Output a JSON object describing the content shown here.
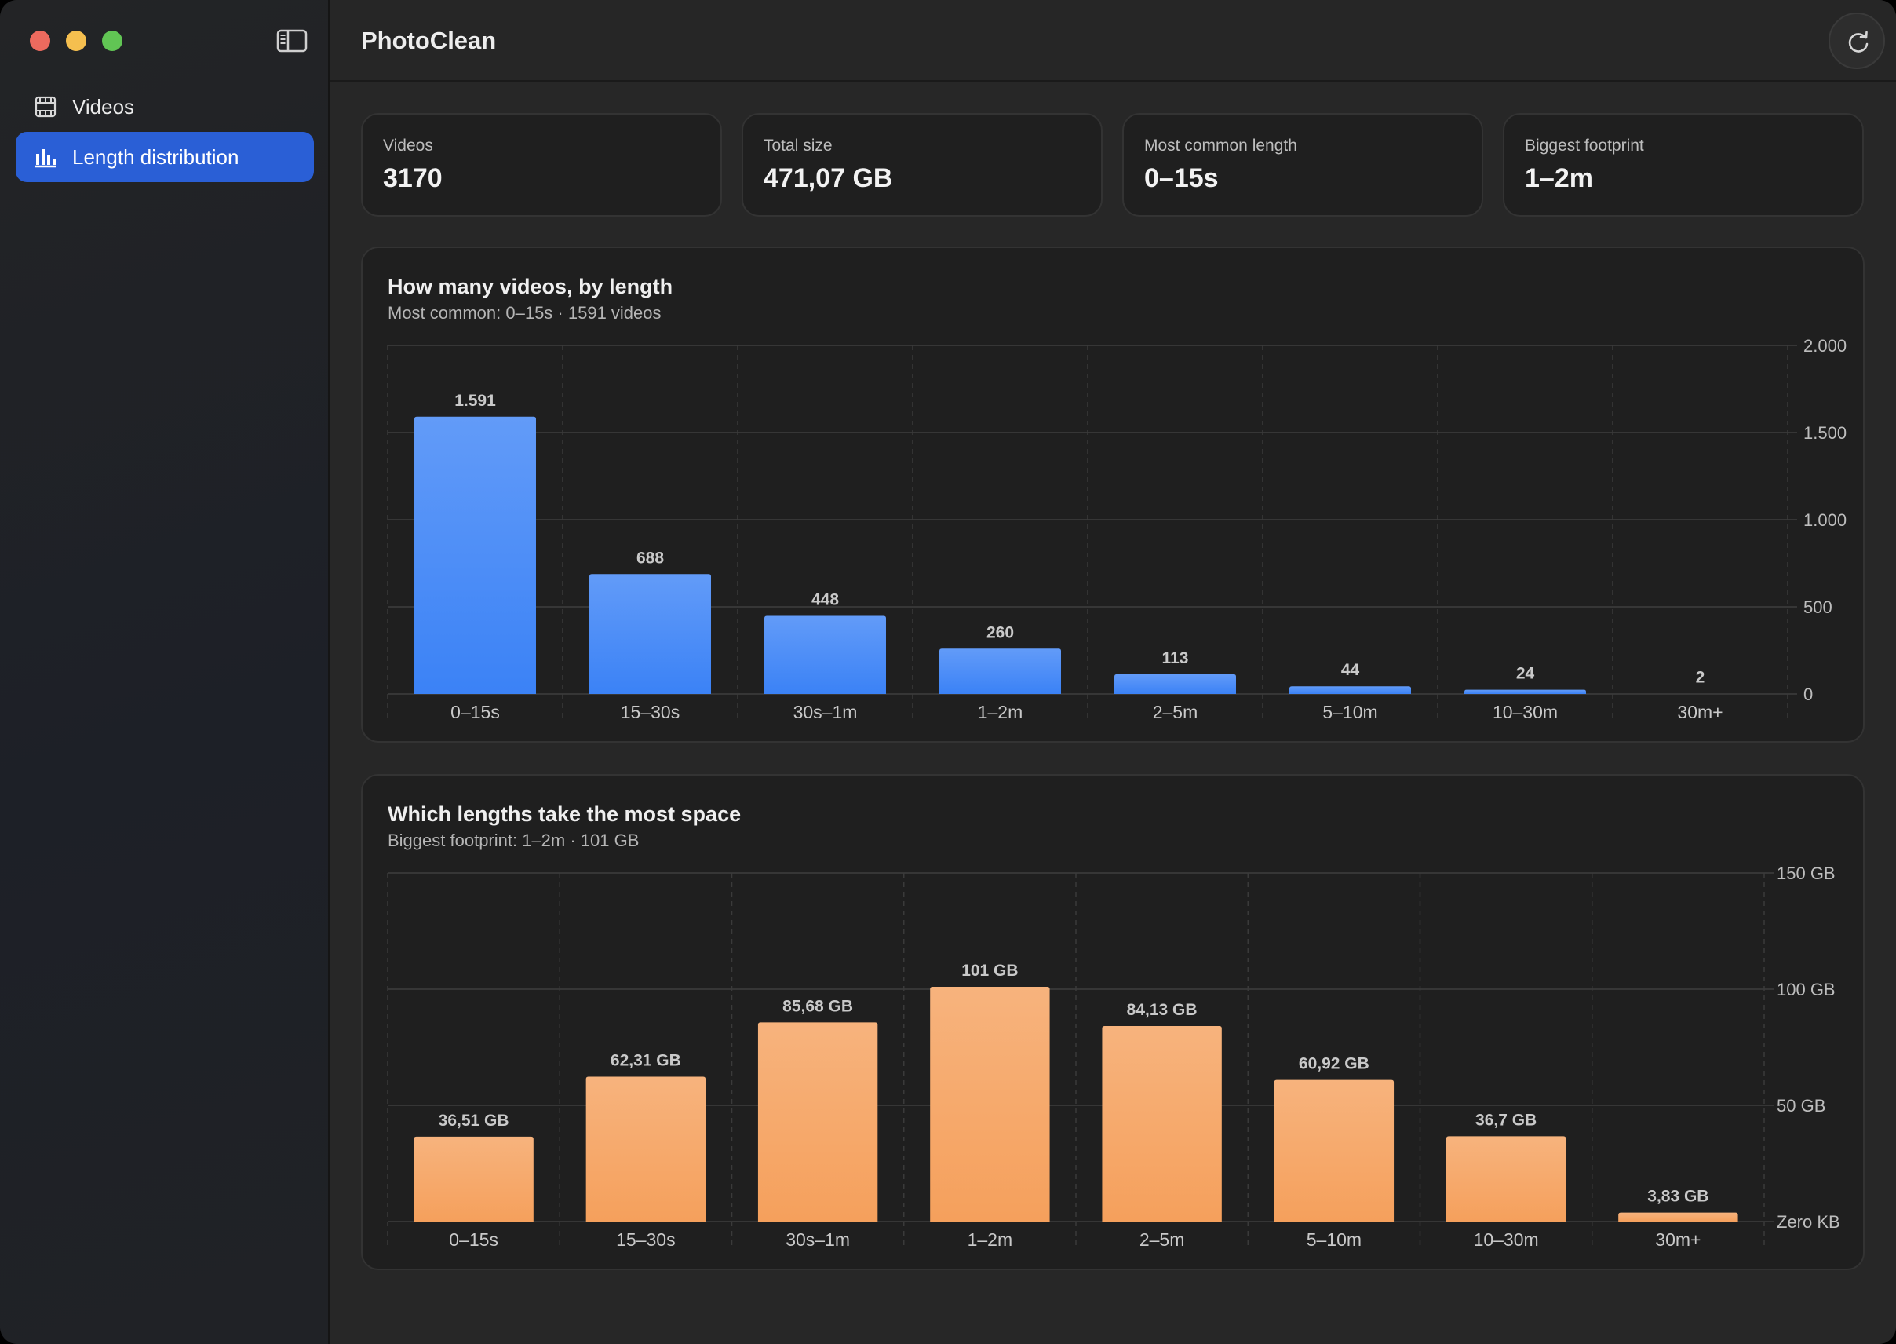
{
  "window": {
    "app_title": "PhotoClean"
  },
  "sidebar": {
    "items": [
      {
        "label": "Videos",
        "icon": "film-icon",
        "active": false
      },
      {
        "label": "Length distribution",
        "icon": "bar-chart-icon",
        "active": true
      }
    ]
  },
  "toolbar": {
    "refresh_icon": "refresh-icon"
  },
  "stats": [
    {
      "label": "Videos",
      "value": "3170"
    },
    {
      "label": "Total size",
      "value": "471,07 GB"
    },
    {
      "label": "Most common length",
      "value": "0–15s"
    },
    {
      "label": "Biggest footprint",
      "value": "1–2m"
    }
  ],
  "colors": {
    "accent": "#2a5fd6",
    "count_bar": "#3b82f6",
    "size_bar": "#f5a05c"
  },
  "chart_data": [
    {
      "type": "bar",
      "title": "How many videos, by length",
      "subtitle": "Most common: 0–15s · 1591 videos",
      "categories": [
        "0–15s",
        "15–30s",
        "30s–1m",
        "1–2m",
        "2–5m",
        "5–10m",
        "10–30m",
        "30m+"
      ],
      "values": [
        1591,
        688,
        448,
        260,
        113,
        44,
        24,
        2
      ],
      "value_labels": [
        "1.591",
        "688",
        "448",
        "260",
        "113",
        "44",
        "24",
        "2"
      ],
      "ylim": [
        0,
        2000
      ],
      "yticks": [
        0,
        500,
        1000,
        1500,
        2000
      ],
      "ytick_labels": [
        "0",
        "500",
        "1.000",
        "1.500",
        "2.000"
      ],
      "grid": true,
      "color": "#3b82f6"
    },
    {
      "type": "bar",
      "title": "Which lengths take the most space",
      "subtitle": "Biggest footprint: 1–2m · 101 GB",
      "categories": [
        "0–15s",
        "15–30s",
        "30s–1m",
        "1–2m",
        "2–5m",
        "5–10m",
        "10–30m",
        "30m+"
      ],
      "values": [
        36.51,
        62.31,
        85.68,
        101,
        84.13,
        60.92,
        36.7,
        3.83
      ],
      "value_labels": [
        "36,51 GB",
        "62,31 GB",
        "85,68 GB",
        "101 GB",
        "84,13 GB",
        "60,92 GB",
        "36,7 GB",
        "3,83 GB"
      ],
      "ylim": [
        0,
        150
      ],
      "yticks": [
        0,
        50,
        100,
        150
      ],
      "ytick_labels": [
        "Zero KB",
        "50 GB",
        "100 GB",
        "150 GB"
      ],
      "grid": true,
      "color": "#f5a05c"
    }
  ]
}
